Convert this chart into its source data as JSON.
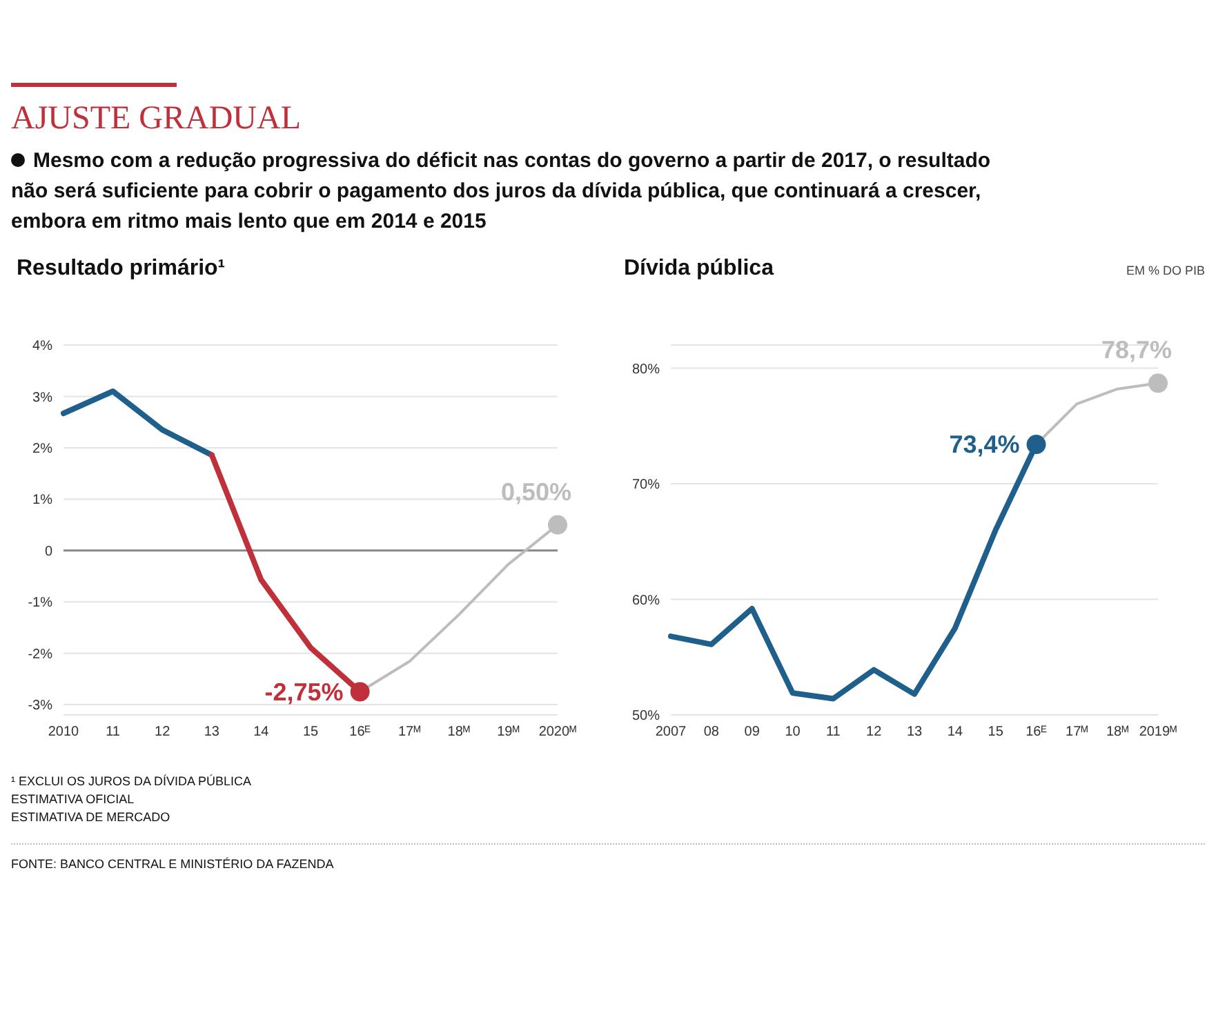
{
  "chart_data": [
    {
      "type": "line",
      "title": "Resultado primário¹",
      "annotations": [
        "AJUSTE GRADUAL",
        "Mesmo com a redução progressiva do déficit nas contas do governo a partir de 2017, o resultado não será suficiente para cobrir o pagamento dos juros da dívida pública, que continuará a crescer, embora em ritmo mais lento que em 2014 e 2015",
        "¹ EXCLUI OS JUROS DA DÍVIDA PÚBLICA",
        "ESTIMATIVA OFICIAL",
        "ESTIMATIVA DE MERCADO",
        "FONTE: BANCO CENTRAL E MINISTÉRIO DA FAZENDA"
      ],
      "categories": [
        "2010",
        "11",
        "12",
        "13",
        "14",
        "15",
        "16ᴱ",
        "17ᴹ",
        "18ᴹ",
        "19ᴹ",
        "2020ᴹ"
      ],
      "series": [
        {
          "color": "#1f5f8b",
          "values": [
            2.67,
            3.1,
            2.35,
            1.86,
            null,
            null,
            null,
            null,
            null,
            null,
            null
          ]
        },
        {
          "color": "#c0303a",
          "values": [
            null,
            null,
            null,
            1.86,
            -0.57,
            -1.89,
            -2.75,
            null,
            null,
            null,
            null
          ],
          "value_labels": [
            null,
            null,
            null,
            null,
            null,
            null,
            "-2,75%",
            null,
            null,
            null,
            null
          ]
        },
        {
          "color": "#bdbdbd",
          "values": [
            null,
            null,
            null,
            null,
            null,
            null,
            -2.75,
            -2.16,
            -1.25,
            -0.27,
            0.5
          ],
          "value_labels": [
            null,
            null,
            null,
            null,
            null,
            null,
            null,
            null,
            null,
            null,
            "0,50%"
          ]
        }
      ],
      "ylim": [
        -3.2,
        4
      ],
      "yticks": [
        {
          "value": 4,
          "label": "4%"
        },
        {
          "value": 3,
          "label": "3%"
        },
        {
          "value": 2,
          "label": "2%"
        },
        {
          "value": 1,
          "label": "1%"
        },
        0,
        {
          "value": -1,
          "label": "-1%"
        },
        {
          "value": -2,
          "label": "-2%"
        },
        {
          "value": -3,
          "label": "-3%"
        }
      ],
      "ref_lines": [
        {
          "axis": "y",
          "value": 0,
          "color": "#888888"
        }
      ],
      "grid": "y",
      "legend": false,
      "line_style": "solid"
    },
    {
      "type": "line",
      "title": "Dívida pública",
      "subtitle": "EM % DO PIB",
      "categories": [
        "2007",
        "08",
        "09",
        "10",
        "11",
        "12",
        "13",
        "14",
        "15",
        "16ᴱ",
        "17ᴹ",
        "18ᴹ",
        "2019ᴹ"
      ],
      "series": [
        {
          "color": "#1f5f8b",
          "values": [
            56.8,
            56.1,
            59.2,
            51.9,
            51.4,
            53.9,
            51.8,
            57.5,
            66.0,
            73.4,
            null,
            null,
            null
          ],
          "value_labels": [
            null,
            null,
            null,
            null,
            null,
            null,
            null,
            null,
            null,
            "73,4%",
            null,
            null,
            null
          ]
        },
        {
          "color": "#bdbdbd",
          "values": [
            null,
            null,
            null,
            null,
            null,
            null,
            null,
            null,
            null,
            73.4,
            76.9,
            78.2,
            78.7
          ],
          "value_labels": [
            null,
            null,
            null,
            null,
            null,
            null,
            null,
            null,
            null,
            null,
            null,
            null,
            "78,7%"
          ]
        }
      ],
      "ylim": [
        50,
        82
      ],
      "yticks": [
        {
          "value": 50,
          "label": "50%"
        },
        {
          "value": 60,
          "label": "60%"
        },
        {
          "value": 70,
          "label": "70%"
        },
        {
          "value": 80,
          "label": "80%"
        }
      ],
      "grid": "y",
      "legend": false,
      "line_style": "solid"
    }
  ]
}
